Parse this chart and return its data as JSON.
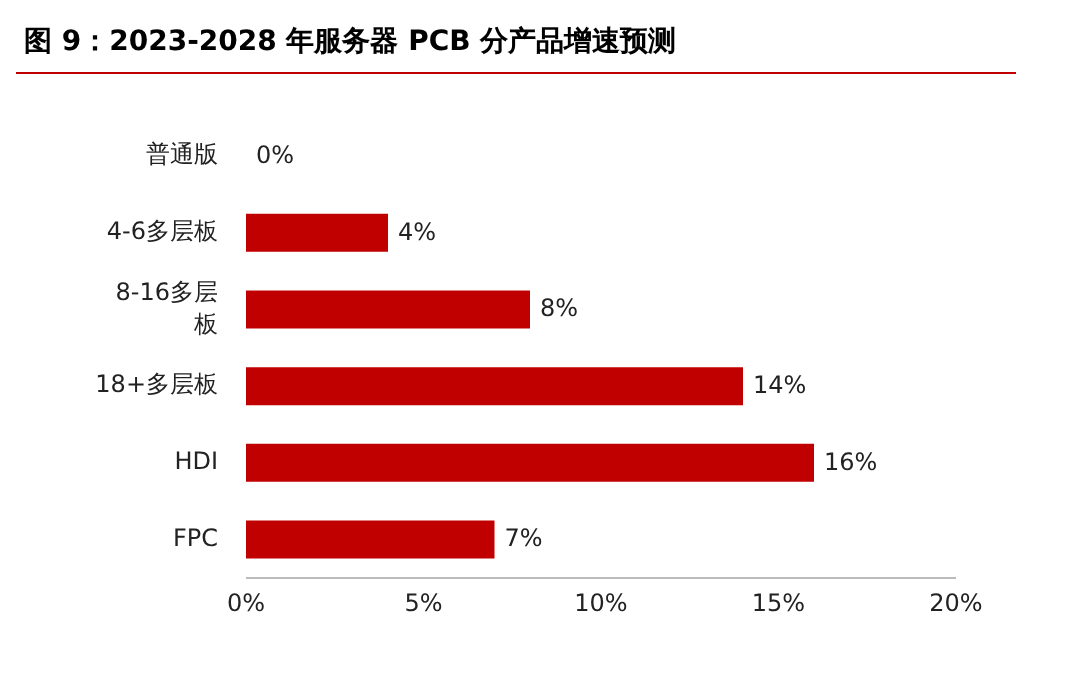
{
  "chart_data": {
    "type": "bar",
    "orientation": "horizontal",
    "title": "图 9：2023-2028 年服务器 PCB 分产品增速预测",
    "categories": [
      "普通版",
      "4-6多层板",
      "8-16多层板",
      "18+多层板",
      "HDI",
      "FPC"
    ],
    "values": [
      0,
      4,
      8,
      14,
      16,
      7
    ],
    "value_labels": [
      "0%",
      "4%",
      "8%",
      "14%",
      "16%",
      "7%"
    ],
    "color": "#c00000",
    "xlim": [
      0,
      20
    ],
    "xticks": [
      {
        "value": 0,
        "label": "0%"
      },
      {
        "value": 5,
        "label": "5%"
      },
      {
        "value": 10,
        "label": "10%"
      },
      {
        "value": 15,
        "label": "15%"
      },
      {
        "value": 20,
        "label": "20%"
      }
    ],
    "grid": false
  }
}
